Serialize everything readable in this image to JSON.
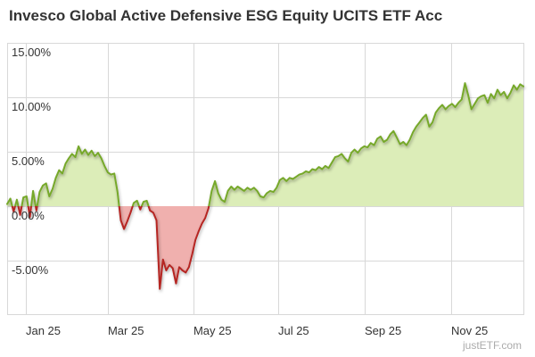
{
  "title": "Invesco Global Active Defensive ESG Equity UCITS ETF Acc",
  "watermark": "justETF.com",
  "colors": {
    "positive_line": "#76a82b",
    "positive_fill": "#dcedb8",
    "negative_line": "#b52523",
    "negative_fill": "#f0b0ae",
    "grid": "#d8d8d8",
    "label": "#333333",
    "title": "#333333",
    "watermark": "#ababab",
    "background": "#ffffff"
  },
  "chart_data": {
    "type": "area",
    "title": "Invesco Global Active Defensive ESG Equity UCITS ETF Acc",
    "xlabel": "",
    "ylabel": "",
    "ylim": [
      -10,
      15
    ],
    "baseline": 0,
    "grid": "on",
    "legend": "off",
    "y_ticks": [
      {
        "value": 15,
        "label": "15.00%"
      },
      {
        "value": 10,
        "label": "10.00%"
      },
      {
        "value": 5,
        "label": "5.00%"
      },
      {
        "value": 0,
        "label": "0.00%"
      },
      {
        "value": -5,
        "label": "-5.00%"
      }
    ],
    "x_ticks": [
      {
        "label": "Jan 25",
        "pos": 0.0362
      },
      {
        "label": "Mar 25",
        "pos": 0.1948
      },
      {
        "label": "May 25",
        "pos": 0.3603
      },
      {
        "label": "Jul 25",
        "pos": 0.5241
      },
      {
        "label": "Sep 25",
        "pos": 0.6914
      },
      {
        "label": "Nov 25",
        "pos": 0.8586
      }
    ],
    "series": [
      {
        "name": "Invesco Global Active Defensive ESG Equity UCITS ETF Acc",
        "unit": "%",
        "values": [
          0.2,
          0.7,
          -0.5,
          0.6,
          -0.8,
          0.8,
          0.9,
          -1.0,
          1.4,
          -0.4,
          1.3,
          1.9,
          2.1,
          0.9,
          1.6,
          2.6,
          3.3,
          3.0,
          3.9,
          4.4,
          4.8,
          4.5,
          5.5,
          4.8,
          5.2,
          4.7,
          5.1,
          4.6,
          4.9,
          4.4,
          3.7,
          3.1,
          2.9,
          3.0,
          1.3,
          -1.3,
          -2.1,
          -1.4,
          -0.6,
          0.3,
          0.5,
          -0.3,
          0.4,
          0.5,
          -0.4,
          -0.6,
          -1.3,
          -7.6,
          -4.9,
          -5.9,
          -5.4,
          -5.7,
          -7.1,
          -5.6,
          -5.9,
          -6.1,
          -5.6,
          -4.4,
          -3.1,
          -2.3,
          -1.6,
          -1.1,
          -0.2,
          1.4,
          2.3,
          1.2,
          0.6,
          0.4,
          1.4,
          1.8,
          1.5,
          1.8,
          1.6,
          1.4,
          1.7,
          1.5,
          1.7,
          1.4,
          0.9,
          0.8,
          1.2,
          1.4,
          1.3,
          1.7,
          2.4,
          2.6,
          2.3,
          2.6,
          2.5,
          2.7,
          2.9,
          3.0,
          3.2,
          3.1,
          3.4,
          3.3,
          3.6,
          3.4,
          3.7,
          3.5,
          4.0,
          4.5,
          4.6,
          4.8,
          4.4,
          4.1,
          4.9,
          5.2,
          4.9,
          5.3,
          5.5,
          5.4,
          5.8,
          5.6,
          6.2,
          6.4,
          5.9,
          6.1,
          6.6,
          6.9,
          6.3,
          5.7,
          5.9,
          5.6,
          6.1,
          6.8,
          7.3,
          7.7,
          8.1,
          8.4,
          7.3,
          7.7,
          8.6,
          9.0,
          9.3,
          8.9,
          9.2,
          9.4,
          9.1,
          9.5,
          9.8,
          11.3,
          10.2,
          8.9,
          9.4,
          9.9,
          10.1,
          10.2,
          9.5,
          10.3,
          9.9,
          10.7,
          10.2,
          10.5,
          9.9,
          10.4,
          11.1,
          10.7,
          11.2,
          11.0
        ]
      }
    ]
  }
}
